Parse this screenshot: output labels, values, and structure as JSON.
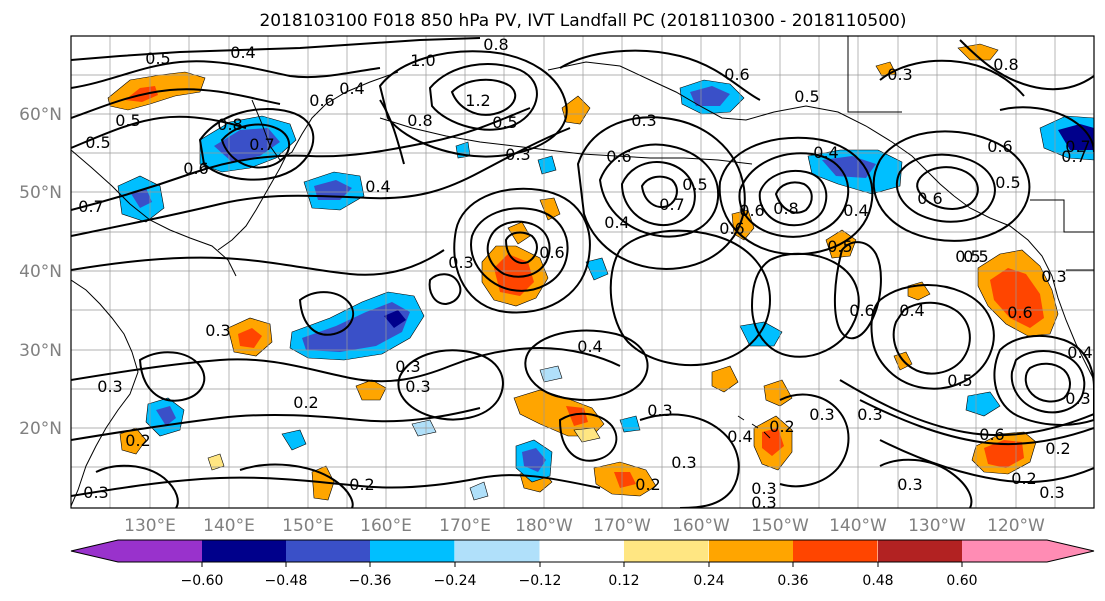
{
  "title": "2018103100 F018 850 hPa PV, IVT Landfall PC (2018110300 - 2018110500)",
  "lat_ticks": [
    "60°N",
    "50°N",
    "40°N",
    "30°N",
    "20°N"
  ],
  "lon_ticks": [
    "130°E",
    "140°E",
    "150°E",
    "160°E",
    "170°E",
    "180°W",
    "170°W",
    "160°W",
    "150°W",
    "140°W",
    "130°W",
    "120°W"
  ],
  "colorbar": {
    "ticks": [
      "−0.60",
      "−0.48",
      "−0.36",
      "−0.24",
      "−0.12",
      "0.12",
      "0.24",
      "0.36",
      "0.48",
      "0.60"
    ],
    "colors": [
      "#9932cc",
      "#00008b",
      "#3a50c8",
      "#00bfff",
      "#b0e0fa",
      "#ffffff",
      "#ffe682",
      "#ffa500",
      "#ff4500",
      "#b22222",
      "#ff8cb4"
    ]
  },
  "contour_labels": [
    "0.5",
    "0.4",
    "0.8",
    "0.6",
    "0.8",
    "0.5",
    "0.7",
    "0.4",
    "1.0",
    "0.6",
    "1.2",
    "0.8",
    "0.3",
    "0.5",
    "0.6",
    "0.5",
    "0.3",
    "0.6",
    "0.7",
    "0.5",
    "0.4",
    "0.4",
    "0.6",
    "0.8",
    "0.4",
    "0.7",
    "0.5",
    "0.6",
    "0.3",
    "0.6",
    "0.3",
    "0.4",
    "0.5",
    "0.3",
    "0.3",
    "0.3",
    "0.4",
    "0.6",
    "0.5",
    "0.4",
    "0.2",
    "0.3",
    "0.3",
    "0.4",
    "0.3",
    "0.2",
    "0.3",
    "0.2",
    "0.6",
    "0.2",
    "0.3",
    "0.2",
    "0.3",
    "0.3",
    "0.3",
    "0.2",
    "0.2",
    "0.3",
    "0.3",
    "0.5",
    "0.7",
    "0.3",
    "0.6",
    "0.4",
    "0.5",
    "0.6",
    "0.7",
    "0.8",
    "0.6",
    "0.5",
    "0.3"
  ]
}
